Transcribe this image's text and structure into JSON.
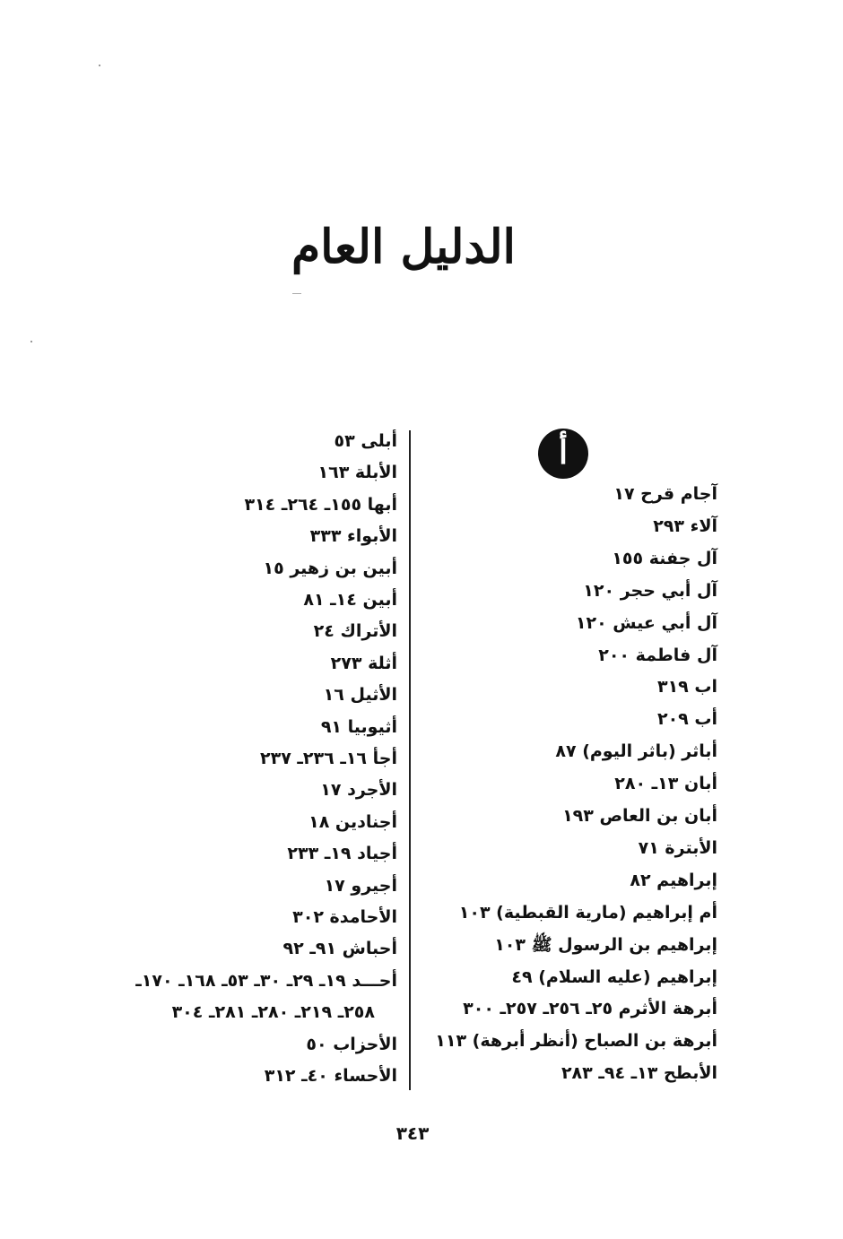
{
  "title": "الدليل العام",
  "section_letter": "أ",
  "page_number": "٣٤٣",
  "right_column": [
    "آجام قرح ١٧",
    "آلاء ٢٩٣",
    "آل جفنة ١٥٥",
    "آل أبي حجر ١٢٠",
    "آل أبي عيش ١٢٠",
    "آل فاطمة ٢٠٠",
    "اب ٣١٩",
    "أب ٢٠٩",
    "أباثر (باثر اليوم) ٨٧",
    "أبان ١٣ـ ٢٨٠",
    "أبان بن العاص ١٩٣",
    "الأبترة ٧١",
    "إبراهيم ٨٢",
    "أم إبراهيم (مارية القبطية) ١٠٣",
    "إبراهيم بن الرسول ﷺ ١٠٣",
    "إبراهيم (عليه السلام) ٤٩",
    "أبرهة الأثرم ٢٥ـ ٢٥٦ـ ٢٥٧ـ ٣٠٠",
    "أبرهة بن الصباح (أنظر أبرهة) ١١٣",
    "الأبطح ١٣ـ ٩٤ـ ٢٨٣"
  ],
  "left_column": [
    "أبلى ٥٣",
    "الأبلة ١٦٣",
    "أبها ١٥٥ـ ٢٦٤ـ ٣١٤",
    "الأبواء ٣٣٣",
    "أبين بن زهير ١٥",
    "أبين ١٤ـ ٨١",
    "الأتراك ٢٤",
    "أثلة ٢٧٣",
    "الأثيل ١٦",
    "أثيوبيا ٩١",
    "أجأ ١٦ـ ٢٣٦ـ ٢٣٧",
    "الأجرد ١٧",
    "أجنادين ١٨",
    "أجياد ١٩ـ ٢٣٣",
    "أجيرو ١٧",
    "الأحامدة ٣٠٢",
    "أحباش ٩١ـ ٩٢",
    "أحـــد ١٩ـ ٢٩ـ ٣٠ـ ٥٣ـ ١٦٨ـ ١٧٠ـ",
    "٢٥٨ـ ٢١٩ـ ٢٨٠ـ ٢٨١ـ ٣٠٤",
    "الأحزاب ٥٠",
    "الأحساء ٤٠ـ ٣١٢"
  ]
}
